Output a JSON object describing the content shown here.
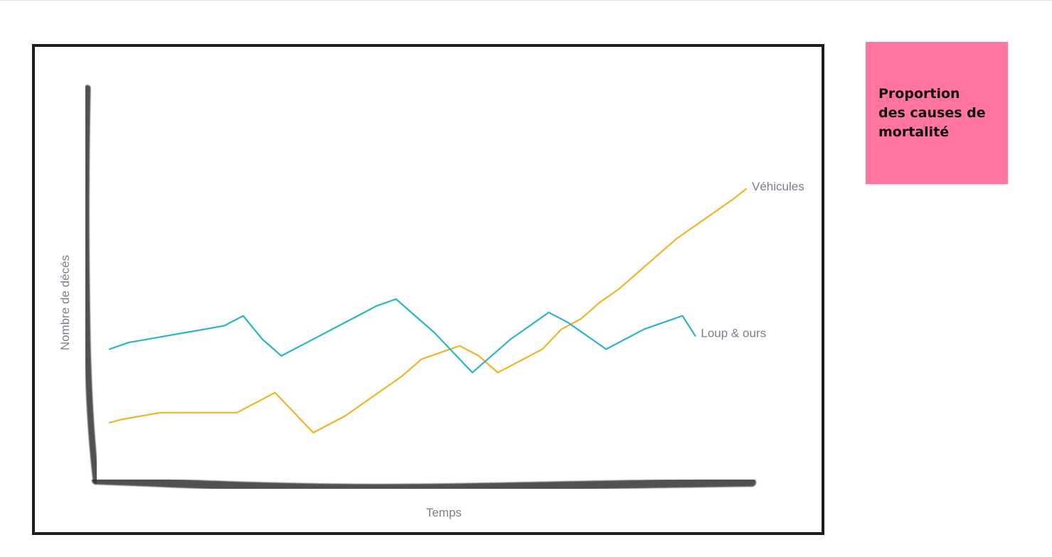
{
  "sticky_note": {
    "text": "Proportion\ndes causes de\nmortalité",
    "color": "#ff759f"
  },
  "colors": {
    "frame": "#1c1c1c",
    "axis": "#333333",
    "label": "#7a8088"
  },
  "chart_data": {
    "type": "line",
    "title": "",
    "xlabel": "Temps",
    "ylabel": "Nombre de décés",
    "xlim": [
      0,
      100
    ],
    "ylim": [
      0,
      100
    ],
    "grid": false,
    "legend": "inline labels at line ends",
    "series": [
      {
        "name": "Véhicules",
        "color": "#f2b329",
        "x": [
          0,
          2,
          5,
          8,
          11,
          14,
          17,
          20,
          23,
          26,
          29,
          32,
          34,
          37,
          40,
          43,
          46,
          49,
          52,
          55,
          58,
          61,
          62,
          65,
          68,
          71,
          74,
          77,
          80,
          83,
          86,
          89,
          92,
          95,
          98,
          100
        ],
        "y": [
          13,
          14,
          15,
          16,
          16,
          16,
          16,
          16,
          19,
          22,
          16,
          10,
          12,
          15,
          19,
          23,
          27,
          32,
          34,
          36,
          33,
          28,
          29,
          32,
          35,
          41,
          44,
          49,
          53,
          58,
          63,
          68,
          72,
          76,
          80,
          83
        ]
      },
      {
        "name": "Loup & ours",
        "color": "#2bb5c4",
        "x": [
          0,
          3,
          6,
          9,
          12,
          15,
          18,
          21,
          24,
          27,
          30,
          33,
          36,
          39,
          42,
          45,
          48,
          51,
          54,
          57,
          60,
          63,
          66,
          69,
          72,
          75,
          78,
          81,
          84,
          87,
          90,
          92
        ],
        "y": [
          35,
          37,
          38,
          39,
          40,
          41,
          42,
          45,
          38,
          33,
          36,
          39,
          42,
          45,
          48,
          50,
          45,
          40,
          34,
          28,
          33,
          38,
          42,
          46,
          43,
          39,
          35,
          38,
          41,
          43,
          45,
          39
        ]
      }
    ]
  }
}
